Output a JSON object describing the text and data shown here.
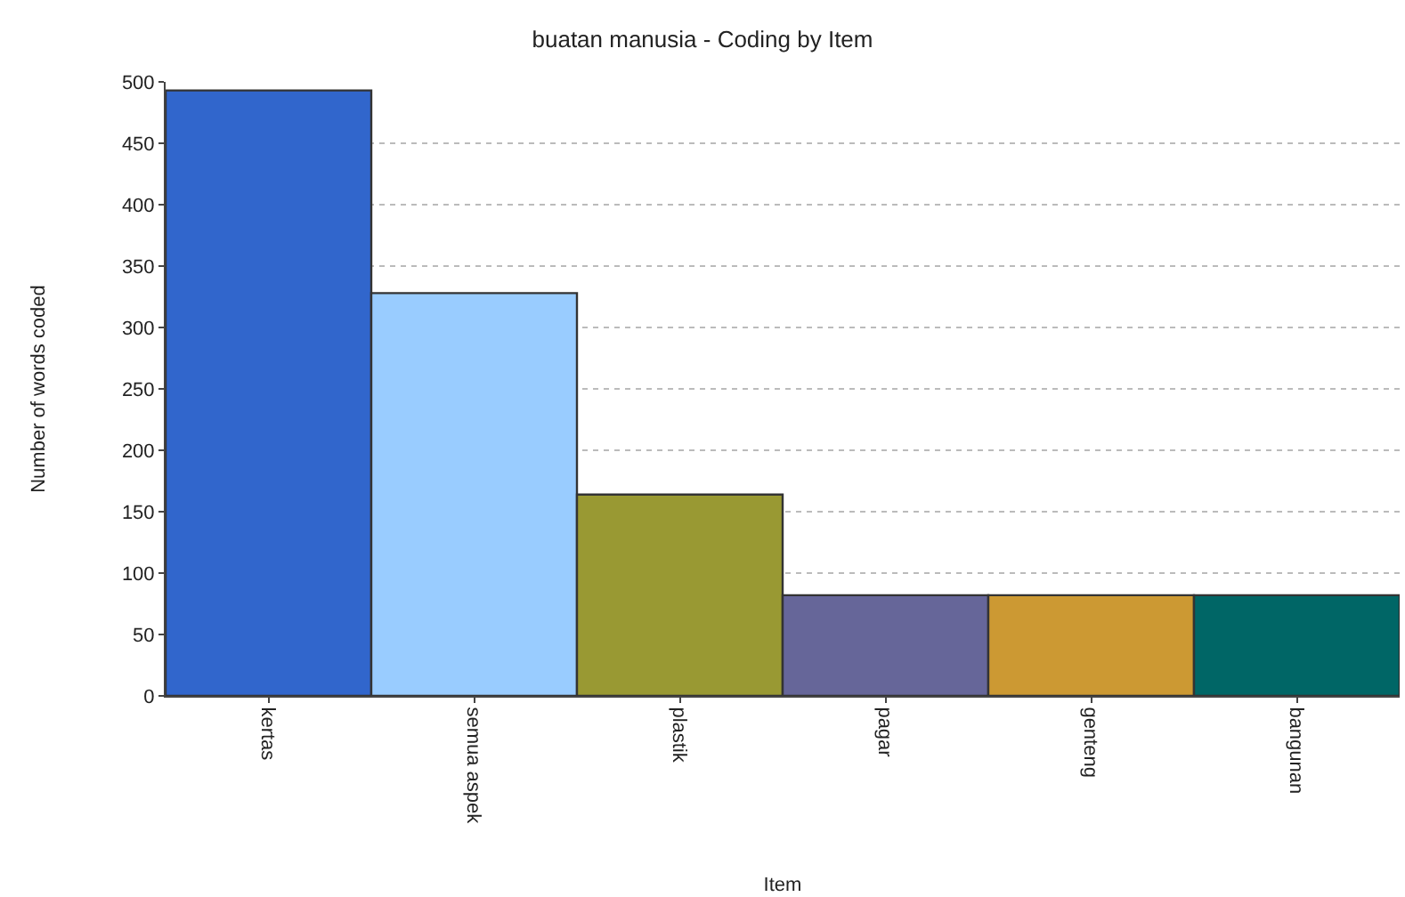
{
  "chart_data": {
    "type": "bar",
    "title": "buatan manusia - Coding by Item",
    "xlabel": "Item",
    "ylabel": "Number of words coded",
    "categories": [
      "kertas",
      "semua aspek",
      "plastik",
      "pagar",
      "genteng",
      "bangunan"
    ],
    "values": [
      493,
      328,
      164,
      82,
      82,
      82
    ],
    "colors": [
      "#3166cc",
      "#99ccff",
      "#999933",
      "#666699",
      "#cc9933",
      "#006666"
    ],
    "ylim": [
      0,
      500
    ],
    "yticks": [
      0,
      50,
      100,
      150,
      200,
      250,
      300,
      350,
      400,
      450,
      500
    ],
    "grid": "y"
  }
}
